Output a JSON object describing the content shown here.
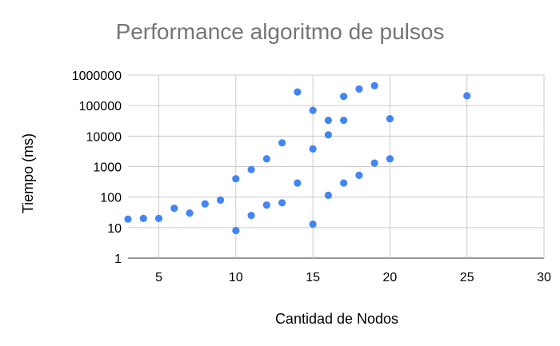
{
  "chart_data": {
    "type": "scatter",
    "title": "Performance algoritmo de pulsos",
    "xlabel": "Cantidad de Nodos",
    "ylabel": "Tiempo (ms)",
    "xlim": [
      3,
      30
    ],
    "ylim": [
      1,
      1000000
    ],
    "yscale": "log",
    "grid": true,
    "x_ticks": [
      5,
      10,
      15,
      20,
      25,
      30
    ],
    "x_tick_labels": [
      "5",
      "10",
      "15",
      "20",
      "25",
      "30"
    ],
    "y_ticks": [
      1,
      10,
      100,
      1000,
      10000,
      100000,
      1000000
    ],
    "y_tick_labels": [
      "1",
      "10",
      "100",
      "1000",
      "10000",
      "100000",
      "1000000"
    ],
    "series": [
      {
        "name": "Tiempo (ms)",
        "color": "#4285f4",
        "points": [
          {
            "x": 3,
            "y": 19
          },
          {
            "x": 4,
            "y": 20
          },
          {
            "x": 5,
            "y": 20
          },
          {
            "x": 6,
            "y": 43
          },
          {
            "x": 7,
            "y": 30
          },
          {
            "x": 8,
            "y": 60
          },
          {
            "x": 9,
            "y": 80
          },
          {
            "x": 10,
            "y": 8
          },
          {
            "x": 10,
            "y": 400
          },
          {
            "x": 11,
            "y": 25
          },
          {
            "x": 11,
            "y": 800
          },
          {
            "x": 12,
            "y": 55
          },
          {
            "x": 12,
            "y": 1800
          },
          {
            "x": 13,
            "y": 65
          },
          {
            "x": 13,
            "y": 6000
          },
          {
            "x": 14,
            "y": 290
          },
          {
            "x": 14,
            "y": 280000
          },
          {
            "x": 15,
            "y": 13
          },
          {
            "x": 15,
            "y": 3800
          },
          {
            "x": 15,
            "y": 70000
          },
          {
            "x": 16,
            "y": 115
          },
          {
            "x": 16,
            "y": 11000
          },
          {
            "x": 16,
            "y": 33000
          },
          {
            "x": 17,
            "y": 290
          },
          {
            "x": 17,
            "y": 33000
          },
          {
            "x": 17,
            "y": 200000
          },
          {
            "x": 18,
            "y": 520
          },
          {
            "x": 18,
            "y": 350000
          },
          {
            "x": 19,
            "y": 1300
          },
          {
            "x": 19,
            "y": 450000
          },
          {
            "x": 20,
            "y": 1800
          },
          {
            "x": 20,
            "y": 37000
          },
          {
            "x": 25,
            "y": 210000
          }
        ]
      }
    ]
  }
}
